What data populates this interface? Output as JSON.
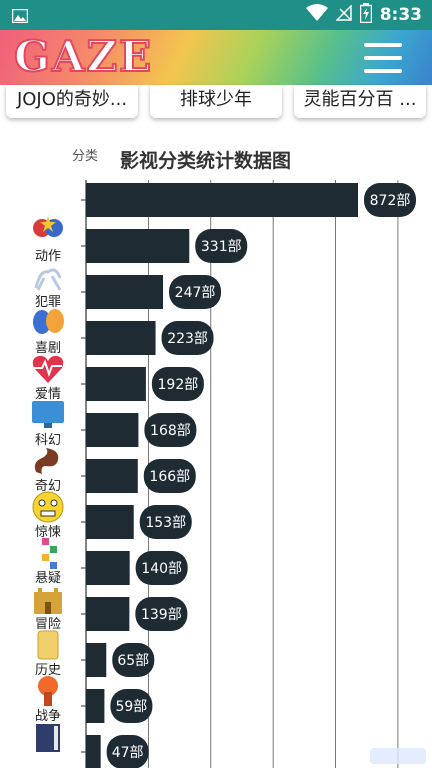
{
  "status_bar": {
    "time": "8:33",
    "icons": [
      "image-icon",
      "wifi-icon",
      "no-signal-icon",
      "battery-charging-icon"
    ]
  },
  "header": {
    "logo": "GAZE",
    "menu_icon": "hamburger-menu-icon"
  },
  "cards": [
    {
      "label": "JOJO的奇妙..."
    },
    {
      "label": "排球少年"
    },
    {
      "label": "灵能百分百 ..."
    }
  ],
  "chart_data": {
    "type": "bar",
    "orientation": "horizontal",
    "title": "影视分类统计数据图",
    "ylabel": "分类",
    "value_suffix": "部",
    "grid": true,
    "xlim": [
      0,
      1000
    ],
    "categories": [
      "",
      "动作",
      "犯罪",
      "喜剧",
      "爱情",
      "科幻",
      "奇幻",
      "惊悚",
      "悬疑",
      "冒险",
      "历史",
      "战争",
      ""
    ],
    "category_icons": [
      "",
      "boxing-gloves-icon",
      "crime-scene-icon",
      "comedy-masks-icon",
      "heart-pulse-icon",
      "sci-fi-screen-icon",
      "dragon-icon",
      "scared-face-icon",
      "puzzle-icon",
      "castle-icon",
      "scroll-icon",
      "explosion-icon",
      "book-icon"
    ],
    "values": [
      872,
      331,
      247,
      223,
      192,
      168,
      166,
      153,
      140,
      139,
      65,
      59,
      47
    ],
    "bar_color": "#1f2b33"
  }
}
